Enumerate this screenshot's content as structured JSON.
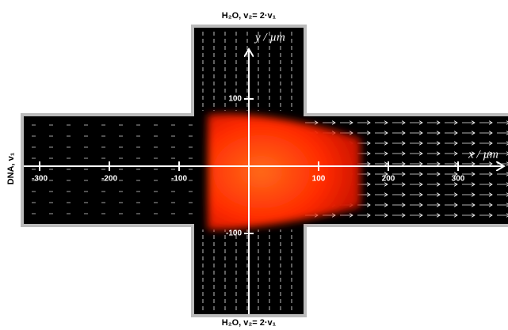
{
  "labels": {
    "top": "H₂O,  v₂= 2·v₁",
    "bottom": "H₂O,  v₂= 2·v₁",
    "left": "DNA,  v₁"
  },
  "axes": {
    "x": {
      "label": "x / µm",
      "ticks": [
        -300,
        -200,
        -100,
        100,
        200,
        300
      ]
    },
    "y": {
      "label": "y / µm",
      "ticks": [
        100,
        -100
      ]
    }
  }
}
